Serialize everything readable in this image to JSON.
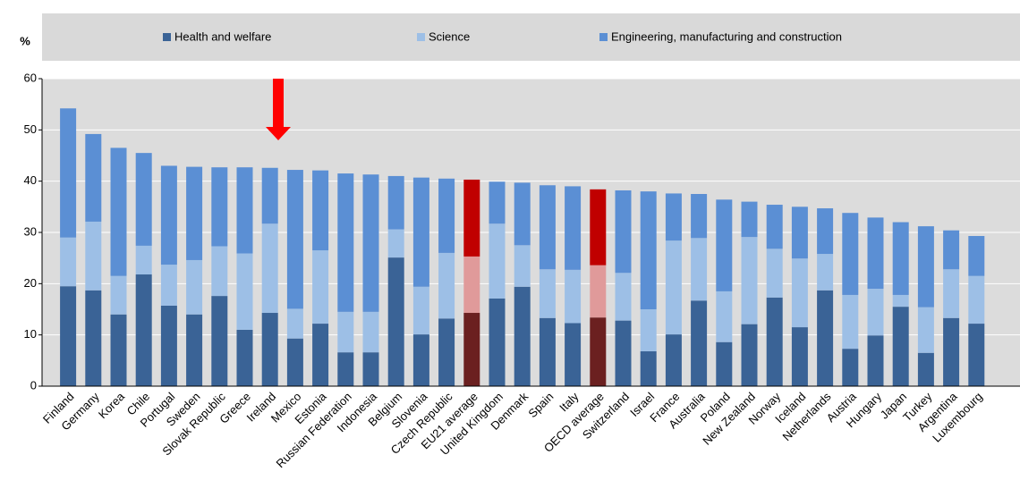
{
  "chart_data": {
    "type": "stacked_bar",
    "y_label": "%",
    "categories": [
      "Finland",
      "Germany",
      "Korea",
      "Chile",
      "Portugal",
      "Sweden",
      "Slovak Republic",
      "Greece",
      "Ireland",
      "Mexico",
      "Estonia",
      "Russian Federation",
      "Indonesia",
      "Belgium",
      "Slovenia",
      "Czech Republic",
      "EU21 average",
      "United Kingdom",
      "Denmark",
      "Spain",
      "Italy",
      "OECD average",
      "Switzerland",
      "Israel",
      "France",
      "Australia",
      "Poland",
      "New Zealand",
      "Norway",
      "Iceland",
      "Netherlands",
      "Austria",
      "Hungary",
      "Japan",
      "Turkey",
      "Argentina",
      "Luxembourg"
    ],
    "series": [
      {
        "name": "Health and welfare",
        "color": "#3a6396",
        "highlight_color": "#6b2020",
        "values": [
          19.5,
          18.7,
          14,
          21.8,
          15.7,
          14,
          17.6,
          11,
          14.3,
          9.3,
          12.2,
          6.6,
          6.6,
          25.1,
          10.1,
          13.2,
          14.3,
          17.1,
          19.4,
          13.3,
          12.3,
          13.4,
          12.8,
          6.8,
          10.1,
          16.7,
          8.6,
          12.1,
          17.3,
          11.5,
          18.7,
          7.3,
          9.9,
          15.5,
          6.5,
          13.3,
          12.2
        ]
      },
      {
        "name": "Science",
        "color": "#9dbfe6",
        "highlight_color": "#e09a9a",
        "values": [
          9.5,
          13.4,
          7.5,
          5.6,
          8,
          10.6,
          9.7,
          14.9,
          17.4,
          5.8,
          14.3,
          7.9,
          7.9,
          5.5,
          9.3,
          12.8,
          11,
          14.6,
          8.1,
          9.5,
          10.4,
          10.2,
          9.3,
          8.2,
          18.3,
          12.2,
          9.9,
          17,
          9.5,
          13.4,
          7.1,
          10.5,
          9.1,
          2.3,
          8.9,
          9.5,
          9.3
        ]
      },
      {
        "name": "Engineering, manufacturing and construction",
        "color": "#5b8fd4",
        "highlight_color": "#c00000",
        "values": [
          25.2,
          17.1,
          25,
          18.1,
          19.3,
          18.2,
          15.4,
          16.8,
          10.9,
          27.1,
          15.6,
          27,
          26.8,
          10.4,
          21.3,
          14.5,
          15,
          8.2,
          12.2,
          16.4,
          16.3,
          14.8,
          16.1,
          23,
          9.2,
          8.6,
          17.9,
          6.9,
          8.6,
          10.1,
          8.9,
          16,
          13.9,
          14.2,
          15.8,
          7.6,
          7.8
        ]
      }
    ],
    "highlight": [
      "EU21 average",
      "OECD average"
    ],
    "ylim": [
      0,
      60
    ],
    "yticks": [
      0,
      10,
      20,
      30,
      40,
      50,
      60
    ],
    "grid": true
  }
}
